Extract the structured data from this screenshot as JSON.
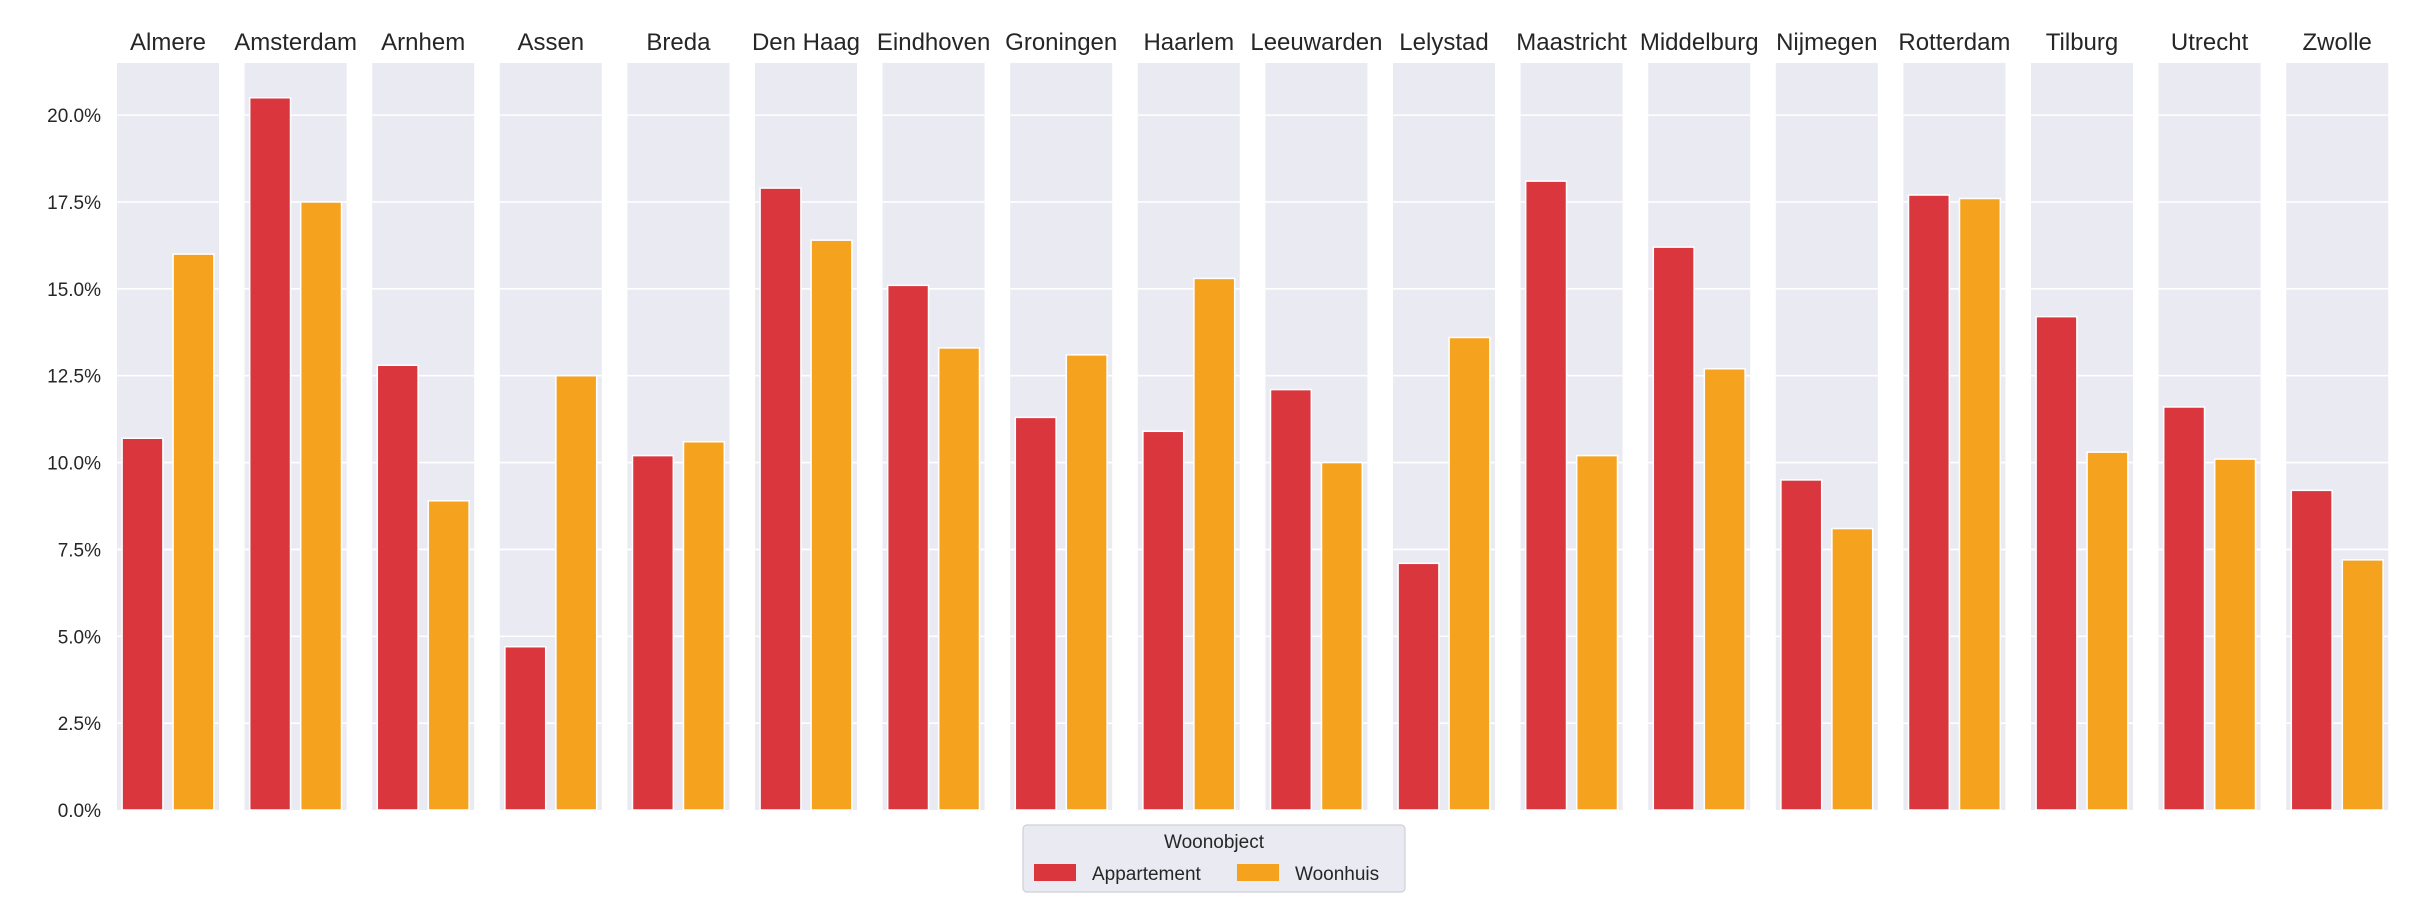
{
  "chart_data": {
    "type": "bar",
    "layout": "faceted-columns",
    "panels": [
      "Almere",
      "Amsterdam",
      "Arnhem",
      "Assen",
      "Breda",
      "Den Haag",
      "Eindhoven",
      "Groningen",
      "Haarlem",
      "Leeuwarden",
      "Lelystad",
      "Maastricht",
      "Middelburg",
      "Nijmegen",
      "Rotterdam",
      "Tilburg",
      "Utrecht",
      "Zwolle"
    ],
    "series": [
      {
        "name": "Appartement",
        "color": "#d9363e",
        "values": [
          0.107,
          0.205,
          0.128,
          0.047,
          0.102,
          0.179,
          0.151,
          0.113,
          0.109,
          0.121,
          0.071,
          0.181,
          0.162,
          0.095,
          0.177,
          0.142,
          0.116,
          0.092
        ]
      },
      {
        "name": "Woonhuis",
        "color": "#f5a31e",
        "values": [
          0.16,
          0.175,
          0.089,
          0.125,
          0.106,
          0.164,
          0.133,
          0.131,
          0.153,
          0.1,
          0.136,
          0.102,
          0.127,
          0.081,
          0.176,
          0.103,
          0.101,
          0.072
        ]
      }
    ],
    "y_ticks": [
      "0.0%",
      "2.5%",
      "5.0%",
      "7.5%",
      "10.0%",
      "12.5%",
      "15.0%",
      "17.5%",
      "20.0%"
    ],
    "ylim": [
      0,
      0.215
    ],
    "y_format": "percent",
    "grid": true,
    "legend": {
      "title": "Woonobject",
      "placement": "bottom-center"
    },
    "panel_background": "#eaeaf2",
    "grid_color": "#ffffff",
    "xlabel": "",
    "ylabel": ""
  }
}
